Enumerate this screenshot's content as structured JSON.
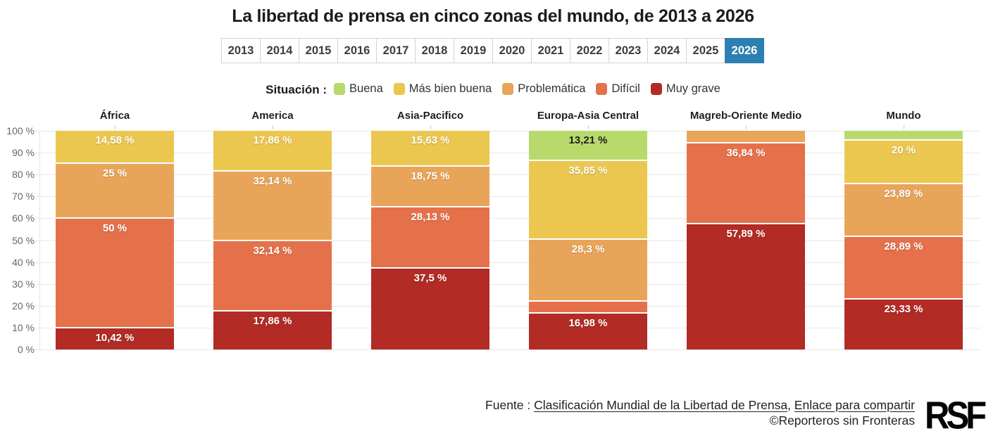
{
  "title": "La libertad de prensa en cinco zonas del mundo, de 2013 a 2026",
  "tabs": {
    "years": [
      "2013",
      "2014",
      "2015",
      "2016",
      "2017",
      "2018",
      "2019",
      "2020",
      "2021",
      "2022",
      "2023",
      "2024",
      "2025",
      "2026"
    ],
    "selected": "2026",
    "selected_color": "#2e7fb1"
  },
  "legend": {
    "title": "Situación :",
    "items": [
      {
        "label": "Buena",
        "color": "#b8da6c"
      },
      {
        "label": "Más bien buena",
        "color": "#ebc74f"
      },
      {
        "label": "Problemática",
        "color": "#e8a55a"
      },
      {
        "label": "Difícil",
        "color": "#e5714b"
      },
      {
        "label": "Muy grave",
        "color": "#b22b25"
      }
    ]
  },
  "chart_data": {
    "type": "bar",
    "subtype": "stacked-percent-column",
    "ylim": [
      0,
      100
    ],
    "yticks": [
      "100 %",
      "90 %",
      "80 %",
      "70 %",
      "60 %",
      "50 %",
      "40 %",
      "30 %",
      "20 %",
      "10 %",
      "0 %"
    ],
    "grid": "horizontal",
    "categories": [
      "Buena",
      "Más bien buena",
      "Problemática",
      "Difícil",
      "Muy grave"
    ],
    "category_colors": {
      "Buena": "#b8da6c",
      "Más bien buena": "#ebc74f",
      "Problemática": "#e8a55a",
      "Difícil": "#e5714b",
      "Muy grave": "#b22b25"
    },
    "groups": [
      {
        "name": "África",
        "segments": [
          {
            "category": "Más bien buena",
            "value": 14.58,
            "label": "14,58 %"
          },
          {
            "category": "Problemática",
            "value": 25,
            "label": "25 %"
          },
          {
            "category": "Difícil",
            "value": 50,
            "label": "50 %"
          },
          {
            "category": "Muy grave",
            "value": 10.42,
            "label": "10,42 %"
          }
        ]
      },
      {
        "name": "America",
        "segments": [
          {
            "category": "Más bien buena",
            "value": 17.86,
            "label": "17,86 %"
          },
          {
            "category": "Problemática",
            "value": 32.14,
            "label": "32,14 %"
          },
          {
            "category": "Difícil",
            "value": 32.14,
            "label": "32,14 %"
          },
          {
            "category": "Muy grave",
            "value": 17.86,
            "label": "17,86 %"
          }
        ]
      },
      {
        "name": "Asia-Pacifico",
        "segments": [
          {
            "category": "Más bien buena",
            "value": 15.63,
            "label": "15,63 %"
          },
          {
            "category": "Problemática",
            "value": 18.75,
            "label": "18,75 %"
          },
          {
            "category": "Difícil",
            "value": 28.13,
            "label": "28,13 %"
          },
          {
            "category": "Muy grave",
            "value": 37.5,
            "label": "37,5 %"
          }
        ]
      },
      {
        "name": "Europa-Asia Central",
        "segments": [
          {
            "category": "Buena",
            "value": 13.21,
            "label": "13,21 %"
          },
          {
            "category": "Más bien buena",
            "value": 35.85,
            "label": "35,85 %"
          },
          {
            "category": "Problemática",
            "value": 28.3,
            "label": "28,3 %"
          },
          {
            "category": "Difícil",
            "value": 5.66,
            "label": ""
          },
          {
            "category": "Muy grave",
            "value": 16.98,
            "label": "16,98 %"
          }
        ]
      },
      {
        "name": "Magreb-Oriente Medio",
        "segments": [
          {
            "category": "Problemática",
            "value": 5.27,
            "label": ""
          },
          {
            "category": "Difícil",
            "value": 36.84,
            "label": "36,84 %"
          },
          {
            "category": "Muy grave",
            "value": 57.89,
            "label": "57,89 %"
          }
        ]
      },
      {
        "name": "Mundo",
        "segments": [
          {
            "category": "Buena",
            "value": 3.89,
            "label": ""
          },
          {
            "category": "Más bien buena",
            "value": 20,
            "label": "20 %"
          },
          {
            "category": "Problemática",
            "value": 23.89,
            "label": "23,89 %"
          },
          {
            "category": "Difícil",
            "value": 28.89,
            "label": "28,89 %"
          },
          {
            "category": "Muy grave",
            "value": 23.33,
            "label": "23,33 %"
          }
        ]
      }
    ]
  },
  "footer": {
    "source_prefix": "Fuente : ",
    "source_link": "Clasificación Mundial de la Libertad de Prensa",
    "separator": ", ",
    "share_link": "Enlace para compartir",
    "copyright": "©Reporteros sin Fronteras",
    "logo_text": "RSF"
  }
}
